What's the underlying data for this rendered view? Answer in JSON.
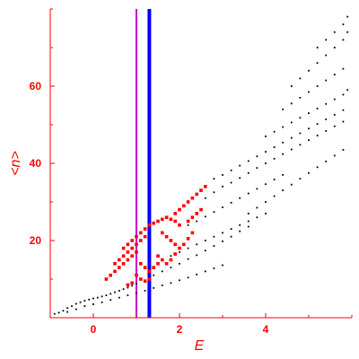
{
  "chart_data": {
    "type": "scatter",
    "title": "",
    "xlabel": "E",
    "ylabel": "<n>",
    "xlim": [
      -1,
      6
    ],
    "ylim": [
      0,
      80
    ],
    "grid": false,
    "legend": "none",
    "x_ticks": [
      0,
      2,
      4
    ],
    "x_tick_labels": [
      "0",
      "2",
      "4"
    ],
    "y_ticks": [
      20,
      40,
      60
    ],
    "y_tick_labels": [
      "20",
      "40",
      "60"
    ],
    "vertical_lines": [
      {
        "x": 1.0,
        "color": "#cc00cc"
      },
      {
        "x": 1.3,
        "color": "#0000ff"
      }
    ],
    "series": [
      {
        "color": "#000000",
        "shape": "dot",
        "points": [
          [
            -0.9,
            1.0
          ],
          [
            -0.8,
            1.3
          ],
          [
            -0.7,
            1.8
          ],
          [
            -0.6,
            2.5
          ],
          [
            -0.5,
            3.0
          ],
          [
            -0.4,
            3.6
          ],
          [
            -0.3,
            4.0
          ],
          [
            -0.2,
            4.4
          ],
          [
            -0.1,
            4.7
          ],
          [
            0.0,
            5.0
          ],
          [
            0.1,
            5.2
          ],
          [
            0.2,
            5.5
          ],
          [
            0.3,
            5.8
          ],
          [
            0.4,
            6.2
          ],
          [
            0.5,
            6.6
          ],
          [
            0.6,
            7.0
          ],
          [
            0.7,
            7.4
          ],
          [
            0.8,
            7.8
          ],
          [
            0.9,
            8.3
          ],
          [
            1.0,
            8.8
          ],
          [
            -0.6,
            1.5
          ],
          [
            -0.4,
            2.2
          ],
          [
            -0.2,
            3.0
          ],
          [
            0.0,
            3.5
          ],
          [
            0.2,
            4.0
          ],
          [
            0.4,
            4.6
          ],
          [
            0.6,
            5.2
          ],
          [
            0.8,
            5.8
          ],
          [
            1.0,
            6.4
          ],
          [
            1.2,
            7.0
          ],
          [
            1.4,
            7.7
          ],
          [
            1.6,
            8.4
          ],
          [
            1.8,
            9.0
          ],
          [
            2.0,
            9.7
          ],
          [
            2.2,
            10.4
          ],
          [
            2.4,
            11.2
          ],
          [
            2.6,
            12.0
          ],
          [
            2.8,
            12.8
          ],
          [
            3.0,
            13.6
          ],
          [
            1.4,
            11.0
          ],
          [
            1.6,
            12.0
          ],
          [
            1.8,
            13.0
          ],
          [
            2.0,
            14.0
          ],
          [
            2.2,
            15.2
          ],
          [
            2.4,
            16.2
          ],
          [
            2.6,
            17.4
          ],
          [
            2.8,
            18.6
          ],
          [
            3.0,
            19.8
          ],
          [
            3.2,
            21.0
          ],
          [
            3.4,
            22.4
          ],
          [
            3.6,
            23.6
          ],
          [
            1.8,
            16.0
          ],
          [
            2.0,
            17.0
          ],
          [
            2.2,
            18.0
          ],
          [
            2.4,
            19.0
          ],
          [
            2.6,
            20.0
          ],
          [
            2.8,
            21.0
          ],
          [
            3.0,
            22.0
          ],
          [
            3.2,
            23.0
          ],
          [
            3.4,
            24.0
          ],
          [
            3.6,
            25.0
          ],
          [
            3.8,
            26.0
          ],
          [
            4.0,
            27.0
          ],
          [
            2.2,
            24.0
          ],
          [
            2.4,
            25.0
          ],
          [
            2.6,
            26.2
          ],
          [
            2.8,
            27.4
          ],
          [
            3.0,
            28.6
          ],
          [
            3.2,
            29.8
          ],
          [
            3.4,
            31.0
          ],
          [
            3.6,
            32.2
          ],
          [
            3.8,
            33.4
          ],
          [
            4.0,
            34.6
          ],
          [
            4.2,
            35.8
          ],
          [
            4.4,
            37.0
          ],
          [
            2.6,
            31.0
          ],
          [
            2.8,
            32.5
          ],
          [
            3.0,
            34.0
          ],
          [
            3.2,
            35.0
          ],
          [
            3.4,
            36.2
          ],
          [
            3.6,
            37.5
          ],
          [
            3.8,
            38.8
          ],
          [
            4.0,
            40.0
          ],
          [
            4.2,
            41.2
          ],
          [
            4.4,
            42.4
          ],
          [
            4.6,
            43.6
          ],
          [
            4.8,
            44.8
          ],
          [
            5.0,
            46.0
          ],
          [
            5.2,
            47.2
          ],
          [
            5.4,
            48.4
          ],
          [
            5.6,
            49.6
          ],
          [
            5.8,
            50.8
          ],
          [
            2.8,
            36.0
          ],
          [
            3.0,
            37.0
          ],
          [
            3.2,
            38.2
          ],
          [
            3.4,
            39.4
          ],
          [
            3.6,
            40.6
          ],
          [
            3.8,
            41.8
          ],
          [
            4.0,
            43.0
          ],
          [
            4.2,
            44.2
          ],
          [
            4.4,
            45.4
          ],
          [
            4.6,
            46.6
          ],
          [
            4.8,
            47.8
          ],
          [
            5.0,
            49.0
          ],
          [
            5.2,
            50.2
          ],
          [
            5.4,
            51.4
          ],
          [
            5.6,
            52.6
          ],
          [
            5.8,
            53.8
          ],
          [
            4.0,
            47.0
          ],
          [
            4.2,
            48.2
          ],
          [
            4.4,
            49.4
          ],
          [
            4.6,
            50.6
          ],
          [
            4.8,
            51.8
          ],
          [
            5.0,
            53.0
          ],
          [
            5.2,
            54.2
          ],
          [
            5.4,
            55.4
          ],
          [
            5.6,
            56.6
          ],
          [
            5.8,
            57.8
          ],
          [
            5.9,
            59.0
          ],
          [
            4.4,
            54.0
          ],
          [
            4.6,
            55.5
          ],
          [
            4.8,
            57.0
          ],
          [
            5.0,
            58.5
          ],
          [
            5.2,
            60.0
          ],
          [
            5.4,
            61.5
          ],
          [
            5.6,
            63.0
          ],
          [
            5.8,
            64.5
          ],
          [
            4.6,
            60.0
          ],
          [
            4.8,
            62.0
          ],
          [
            5.0,
            64.0
          ],
          [
            5.2,
            66.0
          ],
          [
            5.4,
            68.0
          ],
          [
            5.6,
            70.0
          ],
          [
            5.8,
            72.0
          ],
          [
            5.9,
            74.0
          ],
          [
            5.2,
            70.0
          ],
          [
            5.4,
            72.0
          ],
          [
            5.6,
            74.0
          ],
          [
            5.8,
            76.0
          ],
          [
            5.9,
            78.0
          ],
          [
            3.6,
            27.0
          ],
          [
            3.8,
            28.5
          ],
          [
            4.0,
            30.0
          ],
          [
            4.2,
            31.5
          ],
          [
            4.4,
            33.0
          ],
          [
            4.6,
            34.5
          ],
          [
            4.8,
            36.0
          ],
          [
            5.0,
            37.5
          ],
          [
            5.2,
            39.0
          ],
          [
            5.4,
            40.5
          ],
          [
            5.6,
            42.0
          ],
          [
            5.8,
            43.5
          ]
        ]
      },
      {
        "color": "#ff0000",
        "shape": "square",
        "points": [
          [
            0.3,
            10.0
          ],
          [
            0.4,
            11.0
          ],
          [
            0.5,
            12.0
          ],
          [
            0.6,
            13.0
          ],
          [
            0.7,
            14.0
          ],
          [
            0.8,
            15.0
          ],
          [
            0.9,
            16.0
          ],
          [
            1.0,
            17.0
          ],
          [
            0.5,
            14.0
          ],
          [
            0.6,
            15.0
          ],
          [
            0.7,
            16.0
          ],
          [
            0.8,
            17.0
          ],
          [
            0.9,
            18.0
          ],
          [
            1.0,
            19.0
          ],
          [
            1.1,
            20.0
          ],
          [
            1.2,
            21.0
          ],
          [
            0.7,
            18.0
          ],
          [
            0.8,
            19.0
          ],
          [
            0.9,
            20.0
          ],
          [
            1.0,
            21.0
          ],
          [
            1.1,
            22.0
          ],
          [
            1.2,
            23.0
          ],
          [
            1.3,
            24.0
          ],
          [
            1.4,
            24.5
          ],
          [
            1.5,
            25.0
          ],
          [
            1.6,
            25.5
          ],
          [
            1.7,
            26.0
          ],
          [
            1.8,
            25.5
          ],
          [
            1.9,
            25.0
          ],
          [
            2.0,
            24.0
          ],
          [
            1.6,
            22.0
          ],
          [
            1.7,
            21.0
          ],
          [
            1.8,
            20.0
          ],
          [
            1.9,
            19.0
          ],
          [
            2.0,
            18.0
          ],
          [
            2.1,
            19.0
          ],
          [
            2.2,
            20.5
          ],
          [
            2.3,
            22.0
          ],
          [
            1.5,
            16.0
          ],
          [
            1.6,
            15.0
          ],
          [
            1.7,
            14.0
          ],
          [
            1.8,
            15.0
          ],
          [
            1.9,
            16.5
          ],
          [
            1.1,
            14.0
          ],
          [
            1.2,
            13.0
          ],
          [
            1.3,
            12.0
          ],
          [
            1.4,
            13.0
          ],
          [
            1.5,
            14.0
          ],
          [
            1.0,
            11.0
          ],
          [
            1.1,
            10.0
          ],
          [
            1.2,
            9.5
          ],
          [
            1.3,
            10.0
          ],
          [
            0.9,
            9.0
          ],
          [
            0.8,
            8.5
          ],
          [
            1.9,
            27.0
          ],
          [
            2.0,
            28.0
          ],
          [
            2.1,
            29.0
          ],
          [
            2.2,
            30.0
          ],
          [
            2.3,
            31.0
          ],
          [
            2.4,
            32.0
          ],
          [
            2.5,
            33.0
          ],
          [
            2.6,
            34.0
          ],
          [
            2.2,
            25.0
          ],
          [
            2.3,
            26.0
          ],
          [
            2.4,
            27.0
          ],
          [
            2.5,
            28.0
          ]
        ]
      }
    ]
  }
}
